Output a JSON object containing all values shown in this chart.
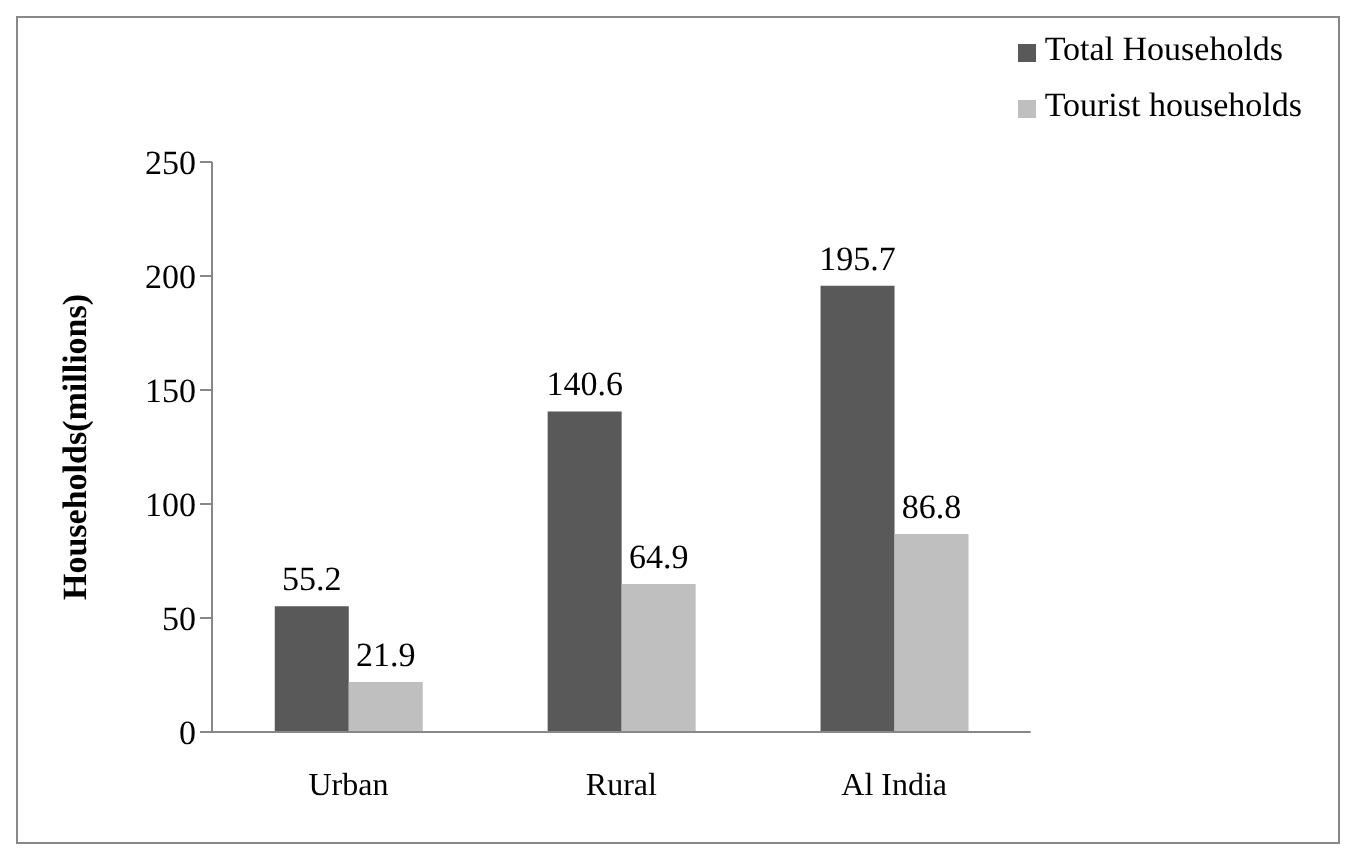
{
  "chart_data": {
    "type": "bar",
    "ylabel": "Households(millions)",
    "categories": [
      "Urban",
      "Rural",
      "Al India"
    ],
    "series": [
      {
        "name": "Total Households",
        "color": "#595959",
        "values": [
          55.2,
          140.6,
          195.7
        ]
      },
      {
        "name": "Tourist households",
        "color": "#bfbfbf",
        "values": [
          21.9,
          64.9,
          86.8
        ]
      }
    ],
    "ylim": [
      0,
      250
    ],
    "yticks": [
      0,
      50,
      100,
      150,
      200,
      250
    ],
    "grid": false,
    "legend": "top right",
    "data_labels": true
  }
}
